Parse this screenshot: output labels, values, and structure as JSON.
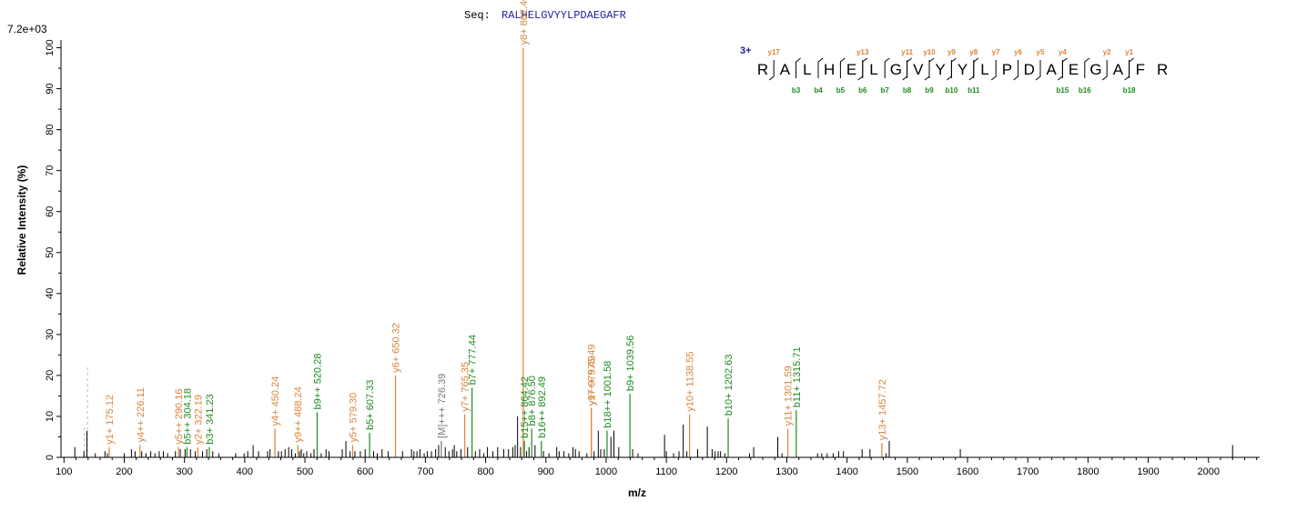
{
  "header": {
    "seq_label": "Seq:",
    "sequence": "RALHELGVYYLPDAEGAFR",
    "intensity_scale": "7.2e+03"
  },
  "colors": {
    "y_ion": "#d9843b",
    "b_ion": "#1e8a1e",
    "precursor": "#777777",
    "unmatched": "#000000",
    "charge": "#1f1f9e"
  },
  "chart_data": {
    "type": "bar",
    "title": "",
    "xlabel": "m/z",
    "ylabel": "Relative Intensity (%)",
    "xlim": [
      95,
      2085
    ],
    "ylim": [
      0,
      101
    ],
    "xticks": [
      100,
      200,
      300,
      400,
      500,
      600,
      700,
      800,
      900,
      1000,
      1100,
      1200,
      1300,
      1400,
      1500,
      1600,
      1700,
      1800,
      1900,
      2000
    ],
    "yticks": [
      0,
      10,
      20,
      30,
      40,
      50,
      60,
      70,
      80,
      90,
      100
    ],
    "labeled_peaks": [
      {
        "mz": 175.12,
        "rel": 2.5,
        "ion": "y",
        "label": "y1+ 175.12"
      },
      {
        "mz": 226.11,
        "rel": 3.0,
        "ion": "y",
        "label": "y4++ 226.11"
      },
      {
        "mz": 290.16,
        "rel": 2.5,
        "ion": "y",
        "label": "y5++ 290.16"
      },
      {
        "mz": 304.18,
        "rel": 2.5,
        "ion": "b",
        "label": "b5++ 304.18"
      },
      {
        "mz": 322.19,
        "rel": 2.5,
        "ion": "y",
        "label": "y2+ 322.19"
      },
      {
        "mz": 341.23,
        "rel": 2.5,
        "ion": "b",
        "label": "b3+ 341.23"
      },
      {
        "mz": 450.24,
        "rel": 7.0,
        "ion": "y",
        "label": "y4+ 450.24"
      },
      {
        "mz": 488.24,
        "rel": 3.0,
        "ion": "y",
        "label": "y9++ 488.24"
      },
      {
        "mz": 520.28,
        "rel": 11.0,
        "ion": "b",
        "label": "b9++ 520.28"
      },
      {
        "mz": 579.3,
        "rel": 3.0,
        "ion": "y",
        "label": "y5+ 579.30"
      },
      {
        "mz": 607.33,
        "rel": 6.0,
        "ion": "b",
        "label": "b5+ 607.33"
      },
      {
        "mz": 650.32,
        "rel": 20.0,
        "ion": "y",
        "label": "y6+ 650.32"
      },
      {
        "mz": 726.39,
        "rel": 4.0,
        "ion": "p",
        "label": "[M]+++ 726.39"
      },
      {
        "mz": 765.35,
        "rel": 10.5,
        "ion": "y",
        "label": "y7+ 765.35"
      },
      {
        "mz": 777.44,
        "rel": 17.0,
        "ion": "b",
        "label": "b7+ 777.44"
      },
      {
        "mz": 862.4,
        "rel": 100.0,
        "ion": "y",
        "label": "y8+ 862.40"
      },
      {
        "mz": 864.42,
        "rel": 4.0,
        "ion": "b",
        "label": "b15++ 864.42"
      },
      {
        "mz": 876.5,
        "rel": 7.0,
        "ion": "b",
        "label": "b8+ 876.50"
      },
      {
        "mz": 892.49,
        "rel": 4.0,
        "ion": "b",
        "label": "b16++ 892.49"
      },
      {
        "mz": 975.49,
        "rel": 12.0,
        "ion": "y",
        "label": "y9+ 975.49"
      },
      {
        "mz": 975.49,
        "rel": 12.0,
        "ion": "y",
        "label": "y17++ 975.49"
      },
      {
        "mz": 1001.58,
        "rel": 6.5,
        "ion": "b",
        "label": "b18++ 1001.58"
      },
      {
        "mz": 1039.56,
        "rel": 15.5,
        "ion": "b",
        "label": "b9+ 1039.56"
      },
      {
        "mz": 1138.55,
        "rel": 10.5,
        "ion": "y",
        "label": "y10+ 1138.55"
      },
      {
        "mz": 1202.63,
        "rel": 9.5,
        "ion": "b",
        "label": "b10+ 1202.63"
      },
      {
        "mz": 1301.59,
        "rel": 7.0,
        "ion": "y",
        "label": "y11+ 1301.59"
      },
      {
        "mz": 1315.71,
        "rel": 11.5,
        "ion": "b",
        "label": "b11+ 1315.71"
      },
      {
        "mz": 1457.72,
        "rel": 3.5,
        "ion": "y",
        "label": "y13+ 1457.72"
      }
    ],
    "unlabeled_peaks": [
      [
        118,
        2.5
      ],
      [
        133,
        1.5
      ],
      [
        138,
        6.5
      ],
      [
        152,
        1.0
      ],
      [
        168,
        1.5
      ],
      [
        172,
        1.0
      ],
      [
        200,
        1.0
      ],
      [
        212,
        2.0
      ],
      [
        218,
        1.5
      ],
      [
        229,
        1.5
      ],
      [
        236,
        1.0
      ],
      [
        244,
        1.5
      ],
      [
        251,
        1.0
      ],
      [
        258,
        1.5
      ],
      [
        265,
        1.5
      ],
      [
        272,
        1.0
      ],
      [
        285,
        1.5
      ],
      [
        293,
        2.0
      ],
      [
        301,
        2.0
      ],
      [
        310,
        2.0
      ],
      [
        318,
        1.5
      ],
      [
        330,
        1.5
      ],
      [
        337,
        2.0
      ],
      [
        347,
        1.5
      ],
      [
        357,
        1.0
      ],
      [
        385,
        1.0
      ],
      [
        399,
        1.0
      ],
      [
        405,
        1.5
      ],
      [
        414,
        3.0
      ],
      [
        423,
        1.5
      ],
      [
        438,
        1.5
      ],
      [
        442,
        2.0
      ],
      [
        456,
        1.5
      ],
      [
        461,
        1.5
      ],
      [
        467,
        2.0
      ],
      [
        473,
        2.5
      ],
      [
        478,
        2.0
      ],
      [
        484,
        1.0
      ],
      [
        491,
        1.5
      ],
      [
        494,
        2.0
      ],
      [
        498,
        1.0
      ],
      [
        503,
        1.5
      ],
      [
        510,
        1.0
      ],
      [
        515,
        2.0
      ],
      [
        527,
        1.0
      ],
      [
        535,
        2.0
      ],
      [
        540,
        1.5
      ],
      [
        562,
        2.0
      ],
      [
        568,
        4.0
      ],
      [
        575,
        1.5
      ],
      [
        583,
        1.5
      ],
      [
        592,
        1.5
      ],
      [
        600,
        2.0
      ],
      [
        614,
        1.5
      ],
      [
        620,
        1.0
      ],
      [
        628,
        2.0
      ],
      [
        638,
        1.5
      ],
      [
        662,
        1.5
      ],
      [
        677,
        2.0
      ],
      [
        681,
        1.5
      ],
      [
        686,
        1.5
      ],
      [
        691,
        2.0
      ],
      [
        698,
        1.0
      ],
      [
        703,
        1.5
      ],
      [
        710,
        1.5
      ],
      [
        717,
        2.0
      ],
      [
        722,
        3.0
      ],
      [
        733,
        2.5
      ],
      [
        739,
        1.5
      ],
      [
        745,
        2.0
      ],
      [
        748,
        3.0
      ],
      [
        752,
        1.5
      ],
      [
        759,
        2.0
      ],
      [
        770,
        2.5
      ],
      [
        783,
        1.5
      ],
      [
        790,
        2.0
      ],
      [
        797,
        1.0
      ],
      [
        803,
        2.5
      ],
      [
        812,
        1.5
      ],
      [
        820,
        2.5
      ],
      [
        830,
        2.0
      ],
      [
        838,
        2.0
      ],
      [
        845,
        2.5
      ],
      [
        849,
        3.0
      ],
      [
        853,
        10.0
      ],
      [
        858,
        2.5
      ],
      [
        868,
        1.5
      ],
      [
        872,
        2.5
      ],
      [
        882,
        3.0
      ],
      [
        896,
        1.5
      ],
      [
        905,
        1.0
      ],
      [
        918,
        2.5
      ],
      [
        922,
        1.5
      ],
      [
        930,
        1.5
      ],
      [
        938,
        1.0
      ],
      [
        945,
        2.5
      ],
      [
        949,
        2.0
      ],
      [
        955,
        1.5
      ],
      [
        968,
        1.0
      ],
      [
        980,
        1.5
      ],
      [
        987,
        6.5
      ],
      [
        991,
        2.0
      ],
      [
        997,
        2.0
      ],
      [
        1008,
        5.0
      ],
      [
        1013,
        6.5
      ],
      [
        1021,
        2.5
      ],
      [
        1044,
        2.0
      ],
      [
        1053,
        1.0
      ],
      [
        1097,
        5.5
      ],
      [
        1100,
        1.5
      ],
      [
        1112,
        1.0
      ],
      [
        1121,
        1.5
      ],
      [
        1128,
        8.0
      ],
      [
        1134,
        1.5
      ],
      [
        1152,
        2.0
      ],
      [
        1168,
        7.5
      ],
      [
        1176,
        2.0
      ],
      [
        1181,
        1.5
      ],
      [
        1186,
        1.5
      ],
      [
        1190,
        1.5
      ],
      [
        1197,
        1.0
      ],
      [
        1238,
        1.0
      ],
      [
        1245,
        2.5
      ],
      [
        1285,
        5.0
      ],
      [
        1292,
        1.0
      ],
      [
        1351,
        1.0
      ],
      [
        1358,
        1.0
      ],
      [
        1367,
        1.0
      ],
      [
        1377,
        1.0
      ],
      [
        1386,
        1.5
      ],
      [
        1394,
        1.5
      ],
      [
        1425,
        2.0
      ],
      [
        1438,
        2.0
      ],
      [
        1465,
        1.0
      ],
      [
        1470,
        4.0
      ],
      [
        1588,
        2.0
      ],
      [
        2040,
        3.0
      ]
    ],
    "dashed_markers": [
      {
        "mz": 134,
        "rel": 7.5
      },
      {
        "mz": 139,
        "rel": 22.0
      }
    ]
  },
  "fragment_map": {
    "charge": "3+",
    "residues": [
      "R",
      "A",
      "L",
      "H",
      "E",
      "L",
      "G",
      "V",
      "Y",
      "Y",
      "L",
      "P",
      "D",
      "A",
      "E",
      "G",
      "A",
      "F",
      "R"
    ],
    "y_ions": [
      {
        "label": "y17",
        "after": 1
      },
      {
        "label": "y13",
        "after": 5
      },
      {
        "label": "y11",
        "after": 7
      },
      {
        "label": "y10",
        "after": 8
      },
      {
        "label": "y9",
        "after": 9
      },
      {
        "label": "y8",
        "after": 10
      },
      {
        "label": "y7",
        "after": 11
      },
      {
        "label": "y6",
        "after": 12
      },
      {
        "label": "y5",
        "after": 13
      },
      {
        "label": "y4",
        "after": 14
      },
      {
        "label": "y2",
        "after": 16
      },
      {
        "label": "y1",
        "after": 17
      }
    ],
    "b_ions": [
      {
        "label": "b3",
        "after": 2
      },
      {
        "label": "b4",
        "after": 3
      },
      {
        "label": "b5",
        "after": 4
      },
      {
        "label": "b6",
        "after": 5
      },
      {
        "label": "b7",
        "after": 6
      },
      {
        "label": "b8",
        "after": 7
      },
      {
        "label": "b9",
        "after": 8
      },
      {
        "label": "b10",
        "after": 9
      },
      {
        "label": "b11",
        "after": 10
      },
      {
        "label": "b15",
        "after": 14
      },
      {
        "label": "b16",
        "after": 15
      },
      {
        "label": "b18",
        "after": 17
      }
    ]
  }
}
